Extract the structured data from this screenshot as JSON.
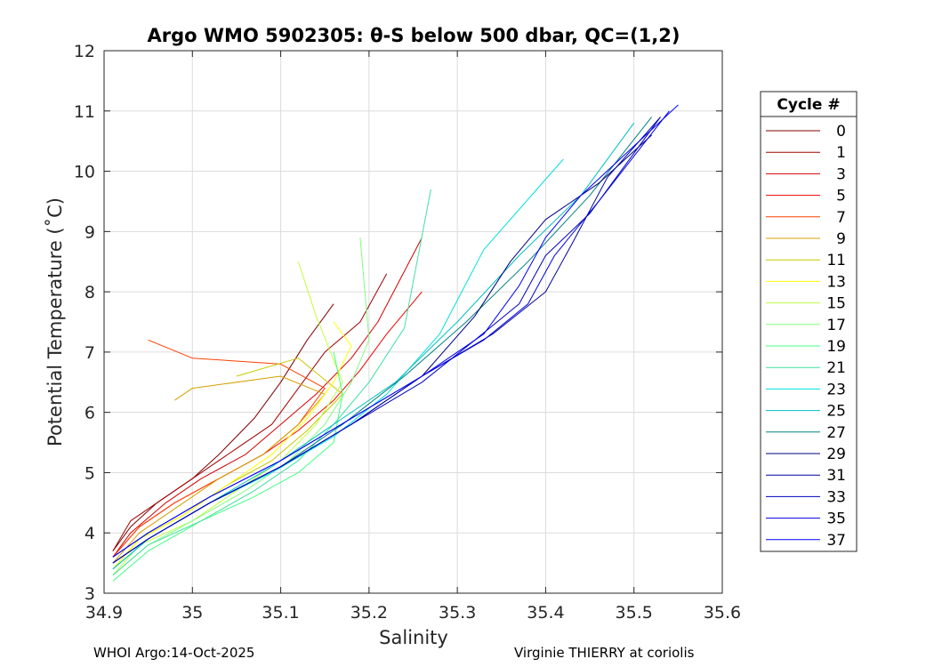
{
  "chart_data": {
    "type": "line",
    "title": "Argo WMO 5902305: θ-S below 500 dbar,  QC=(1,2)",
    "xlabel": "Salinity",
    "ylabel": "Potential Temperature (˚C)",
    "xlim": [
      34.9,
      35.6
    ],
    "ylim": [
      3,
      12
    ],
    "xticks": [
      "34.9",
      "35",
      "35.1",
      "35.2",
      "35.3",
      "35.4",
      "35.5",
      "35.6"
    ],
    "yticks": [
      "3",
      "4",
      "5",
      "6",
      "7",
      "8",
      "9",
      "10",
      "11",
      "12"
    ],
    "grid": true,
    "legend": {
      "title": "Cycle #",
      "position": "right",
      "entries": [
        {
          "label": "0",
          "color": "#800000"
        },
        {
          "label": "1",
          "color": "#a00000"
        },
        {
          "label": "3",
          "color": "#d40000"
        },
        {
          "label": "5",
          "color": "#f00000"
        },
        {
          "label": "7",
          "color": "#ff4000"
        },
        {
          "label": "9",
          "color": "#d4a000"
        },
        {
          "label": "11",
          "color": "#c8c800"
        },
        {
          "label": "13",
          "color": "#ffff00"
        },
        {
          "label": "15",
          "color": "#bfff40"
        },
        {
          "label": "17",
          "color": "#80ff80"
        },
        {
          "label": "19",
          "color": "#40ff80"
        },
        {
          "label": "21",
          "color": "#40e0a0"
        },
        {
          "label": "23",
          "color": "#00e0e0"
        },
        {
          "label": "25",
          "color": "#00c0c0"
        },
        {
          "label": "27",
          "color": "#008080"
        },
        {
          "label": "29",
          "color": "#000080"
        },
        {
          "label": "31",
          "color": "#0000a0"
        },
        {
          "label": "33",
          "color": "#0000c0"
        },
        {
          "label": "35",
          "color": "#0000e0"
        },
        {
          "label": "37",
          "color": "#0000ff"
        }
      ]
    },
    "series": [
      {
        "name": "0",
        "color": "#800000",
        "x": [
          34.91,
          34.93,
          34.96,
          35.0,
          35.03,
          35.07,
          35.1,
          35.13,
          35.16
        ],
        "y": [
          3.7,
          4.1,
          4.5,
          4.9,
          5.3,
          5.9,
          6.5,
          7.2,
          7.8
        ]
      },
      {
        "name": "1",
        "color": "#a00000",
        "x": [
          34.91,
          34.93,
          34.97,
          35.01,
          35.05,
          35.09,
          35.12,
          35.15,
          35.19,
          35.22
        ],
        "y": [
          3.7,
          4.2,
          4.6,
          5.0,
          5.4,
          5.8,
          6.4,
          7.0,
          7.5,
          8.3
        ]
      },
      {
        "name": "3",
        "color": "#d40000",
        "x": [
          34.91,
          34.93,
          34.97,
          35.01,
          35.06,
          35.1,
          35.14,
          35.18,
          35.21,
          35.26
        ],
        "y": [
          3.6,
          4.0,
          4.5,
          4.9,
          5.3,
          5.8,
          6.3,
          6.9,
          7.5,
          8.9
        ]
      },
      {
        "name": "5",
        "color": "#f00000",
        "x": [
          34.91,
          34.94,
          34.98,
          35.03,
          35.08,
          35.12,
          35.16,
          35.19,
          35.22,
          35.26
        ],
        "y": [
          3.6,
          4.1,
          4.5,
          4.9,
          5.3,
          5.7,
          6.2,
          6.7,
          7.3,
          8.0
        ]
      },
      {
        "name": "7",
        "color": "#ff4000",
        "x": [
          34.91,
          34.94,
          34.98,
          35.03,
          35.08,
          35.12,
          35.15,
          35.1,
          35.0,
          34.95
        ],
        "y": [
          3.6,
          4.1,
          4.5,
          4.9,
          5.3,
          5.8,
          6.4,
          6.8,
          6.9,
          7.2
        ]
      },
      {
        "name": "9",
        "color": "#d4a000",
        "x": [
          34.91,
          34.94,
          34.98,
          35.03,
          35.08,
          35.12,
          35.15,
          35.1,
          35.0,
          34.98
        ],
        "y": [
          3.5,
          4.0,
          4.4,
          4.9,
          5.3,
          5.8,
          6.3,
          6.6,
          6.4,
          6.2
        ]
      },
      {
        "name": "11",
        "color": "#c8c800",
        "x": [
          34.91,
          34.94,
          34.99,
          35.04,
          35.09,
          35.13,
          35.17,
          35.12,
          35.05
        ],
        "y": [
          3.4,
          3.9,
          4.3,
          4.8,
          5.2,
          5.7,
          6.3,
          6.9,
          6.6
        ]
      },
      {
        "name": "13",
        "color": "#ffff00",
        "x": [
          34.91,
          34.94,
          34.99,
          35.04,
          35.09,
          35.13,
          35.16,
          35.18,
          35.16
        ],
        "y": [
          3.4,
          3.9,
          4.3,
          4.8,
          5.3,
          5.9,
          6.5,
          7.1,
          7.5
        ]
      },
      {
        "name": "15",
        "color": "#bfff40",
        "x": [
          34.91,
          34.94,
          35.0,
          35.05,
          35.1,
          35.14,
          35.17,
          35.14,
          35.12
        ],
        "y": [
          3.3,
          3.8,
          4.2,
          4.7,
          5.2,
          5.8,
          6.5,
          7.6,
          8.5
        ]
      },
      {
        "name": "17",
        "color": "#80ff80",
        "x": [
          34.91,
          34.95,
          35.0,
          35.06,
          35.11,
          35.15,
          35.18,
          35.2,
          35.19
        ],
        "y": [
          3.3,
          3.8,
          4.2,
          4.7,
          5.2,
          5.8,
          6.5,
          7.2,
          8.9
        ]
      },
      {
        "name": "19",
        "color": "#40ff80",
        "x": [
          34.91,
          34.95,
          35.01,
          35.07,
          35.12,
          35.16,
          35.17,
          35.16
        ],
        "y": [
          3.2,
          3.7,
          4.2,
          4.6,
          5.0,
          5.5,
          6.3,
          7.0
        ]
      },
      {
        "name": "21",
        "color": "#40e0a0",
        "x": [
          34.91,
          34.95,
          35.01,
          35.07,
          35.12,
          35.16,
          35.2,
          35.24,
          35.27
        ],
        "y": [
          3.3,
          3.8,
          4.2,
          4.7,
          5.2,
          5.8,
          6.5,
          7.4,
          9.7
        ]
      },
      {
        "name": "23",
        "color": "#00e0e0",
        "x": [
          34.91,
          34.95,
          35.02,
          35.09,
          35.16,
          35.22,
          35.28,
          35.33,
          35.42
        ],
        "y": [
          3.4,
          3.9,
          4.5,
          5.0,
          5.6,
          6.3,
          7.3,
          8.7,
          10.2
        ]
      },
      {
        "name": "25",
        "color": "#00c0c0",
        "x": [
          34.91,
          34.95,
          35.02,
          35.09,
          35.16,
          35.23,
          35.3,
          35.37,
          35.44,
          35.5
        ],
        "y": [
          3.4,
          3.9,
          4.5,
          5.1,
          5.8,
          6.5,
          7.5,
          8.6,
          9.6,
          10.8
        ]
      },
      {
        "name": "27",
        "color": "#008080",
        "x": [
          34.91,
          34.95,
          35.02,
          35.1,
          35.17,
          35.24,
          35.31,
          35.38,
          35.45,
          35.52
        ],
        "y": [
          3.5,
          3.9,
          4.5,
          5.1,
          5.8,
          6.6,
          7.5,
          8.5,
          9.6,
          10.9
        ]
      },
      {
        "name": "29",
        "color": "#000080",
        "x": [
          34.91,
          34.95,
          35.02,
          35.1,
          35.18,
          35.26,
          35.32,
          35.36,
          35.4,
          35.46,
          35.52
        ],
        "y": [
          3.5,
          3.9,
          4.5,
          5.1,
          5.8,
          6.6,
          7.6,
          8.5,
          9.2,
          9.8,
          10.6
        ]
      },
      {
        "name": "31",
        "color": "#0000a0",
        "x": [
          34.91,
          34.95,
          35.02,
          35.1,
          35.18,
          35.26,
          35.34,
          35.4,
          35.43,
          35.47,
          35.53
        ],
        "y": [
          3.5,
          3.9,
          4.5,
          5.1,
          5.8,
          6.6,
          7.3,
          8.0,
          8.8,
          9.9,
          10.9
        ]
      },
      {
        "name": "33",
        "color": "#0000c0",
        "x": [
          34.91,
          34.95,
          35.02,
          35.1,
          35.18,
          35.26,
          35.32,
          35.37,
          35.4,
          35.45,
          35.53
        ],
        "y": [
          3.5,
          3.9,
          4.5,
          5.1,
          5.8,
          6.5,
          7.2,
          7.8,
          8.6,
          9.3,
          10.9
        ]
      },
      {
        "name": "35",
        "color": "#0000e0",
        "x": [
          34.91,
          34.95,
          35.02,
          35.1,
          35.18,
          35.26,
          35.33,
          35.38,
          35.41,
          35.46,
          35.54
        ],
        "y": [
          3.6,
          4.0,
          4.6,
          5.2,
          5.9,
          6.6,
          7.2,
          7.8,
          8.6,
          9.5,
          11.0
        ]
      },
      {
        "name": "37",
        "color": "#0000ff",
        "x": [
          34.91,
          34.95,
          35.02,
          35.1,
          35.18,
          35.26,
          35.33,
          35.37,
          35.4,
          35.44,
          35.55
        ],
        "y": [
          3.6,
          4.0,
          4.6,
          5.2,
          5.9,
          6.6,
          7.3,
          8.1,
          8.9,
          9.6,
          11.1
        ]
      }
    ]
  },
  "footer": {
    "left": "WHOI Argo:14-Oct-2025",
    "right": "Virginie THIERRY at coriolis"
  }
}
